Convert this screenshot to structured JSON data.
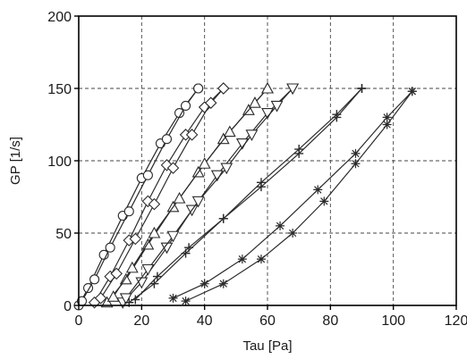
{
  "chart_data": {
    "type": "scatter",
    "xlabel": "Tau [Pa]",
    "ylabel": "GP [1/s]",
    "xlim": [
      0,
      120
    ],
    "ylim": [
      0,
      200
    ],
    "xticks": [
      0,
      20,
      40,
      60,
      80,
      100,
      120
    ],
    "yticks": [
      0,
      50,
      100,
      150,
      200
    ],
    "grid": true,
    "series": [
      {
        "marker": "circle",
        "color": "#2b2b2b",
        "up": {
          "x": [
            0,
            3,
            8,
            14,
            20,
            26,
            32,
            38
          ],
          "y": [
            0,
            12,
            35,
            62,
            88,
            112,
            133,
            150
          ]
        },
        "down": {
          "x": [
            38,
            34,
            28,
            22,
            16,
            10,
            5,
            1
          ],
          "y": [
            150,
            138,
            115,
            90,
            65,
            40,
            18,
            3
          ]
        }
      },
      {
        "marker": "diamond",
        "color": "#2b2b2b",
        "up": {
          "x": [
            5,
            10,
            16,
            22,
            28,
            34,
            40,
            46
          ],
          "y": [
            2,
            20,
            45,
            72,
            97,
            118,
            137,
            150
          ]
        },
        "down": {
          "x": [
            46,
            42,
            36,
            30,
            24,
            18,
            12,
            7
          ],
          "y": [
            150,
            140,
            118,
            95,
            70,
            46,
            22,
            5
          ]
        }
      },
      {
        "marker": "triangle-up",
        "color": "#2b2b2b",
        "up": {
          "x": [
            9,
            15,
            22,
            30,
            38,
            46,
            54,
            60
          ],
          "y": [
            2,
            18,
            42,
            68,
            92,
            115,
            135,
            150
          ]
        },
        "down": {
          "x": [
            60,
            56,
            48,
            40,
            32,
            24,
            17,
            11
          ],
          "y": [
            150,
            140,
            120,
            98,
            74,
            50,
            26,
            6
          ]
        }
      },
      {
        "marker": "triangle-down",
        "color": "#2b2b2b",
        "up": {
          "x": [
            14,
            20,
            28,
            36,
            44,
            52,
            60,
            68
          ],
          "y": [
            2,
            16,
            40,
            66,
            90,
            112,
            133,
            150
          ]
        },
        "down": {
          "x": [
            68,
            63,
            55,
            47,
            38,
            30,
            22,
            15
          ],
          "y": [
            150,
            138,
            118,
            95,
            72,
            48,
            25,
            5
          ]
        }
      },
      {
        "marker": "plus",
        "color": "#2b2b2b",
        "up": {
          "x": [
            16,
            24,
            34,
            46,
            58,
            70,
            82,
            90
          ],
          "y": [
            2,
            15,
            36,
            60,
            85,
            108,
            132,
            150
          ]
        },
        "down": {
          "x": [
            90,
            82,
            70,
            58,
            46,
            35,
            25,
            18
          ],
          "y": [
            150,
            130,
            105,
            82,
            60,
            40,
            20,
            4
          ]
        }
      },
      {
        "marker": "star",
        "color": "#2b2b2b",
        "up": {
          "x": [
            30,
            40,
            52,
            64,
            76,
            88,
            98,
            106
          ],
          "y": [
            5,
            15,
            32,
            55,
            80,
            105,
            130,
            148
          ]
        },
        "down": {
          "x": [
            106,
            98,
            88,
            78,
            68,
            58,
            46,
            34
          ],
          "y": [
            148,
            125,
            98,
            72,
            50,
            32,
            15,
            3
          ]
        }
      }
    ]
  }
}
